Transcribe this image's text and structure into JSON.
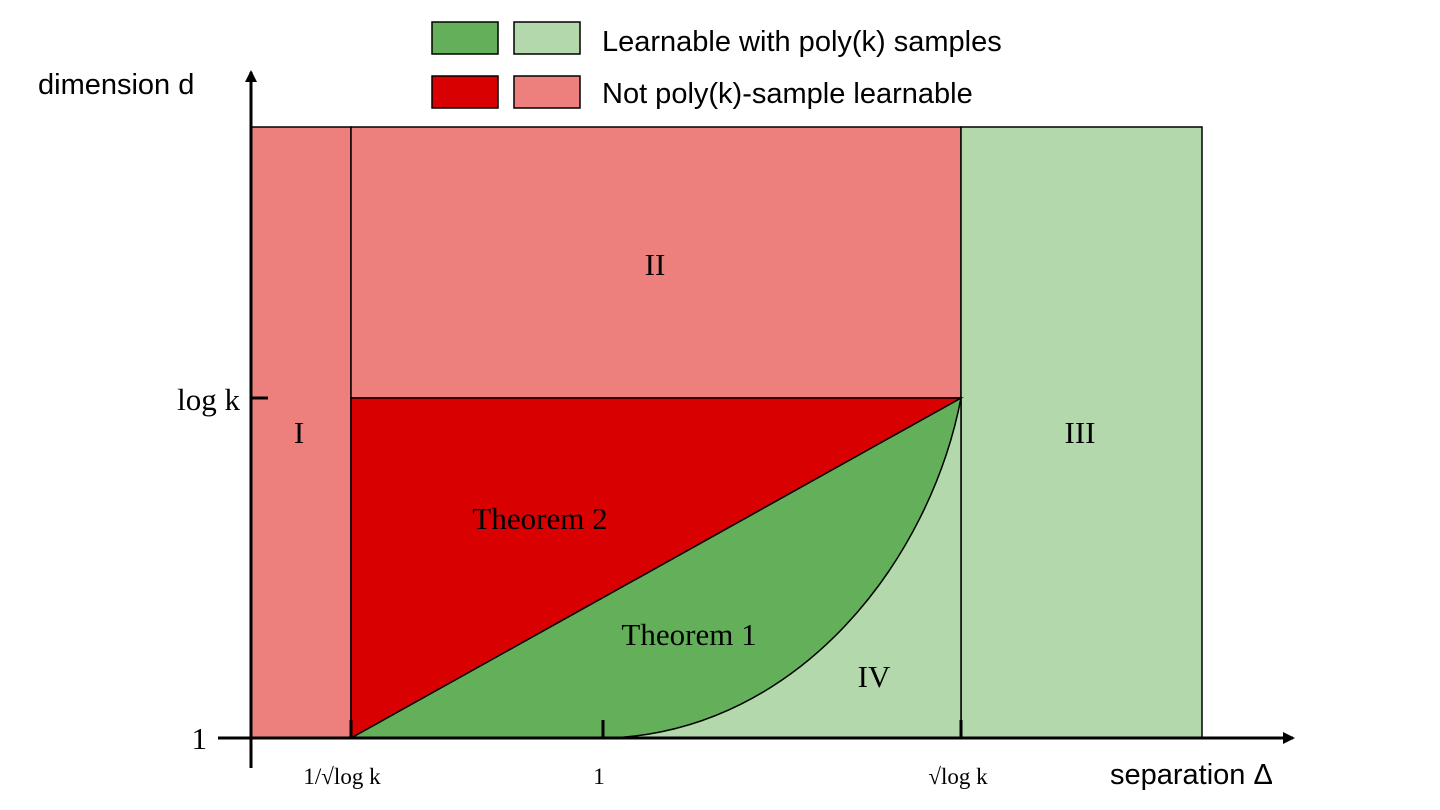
{
  "legend": {
    "learnable_label": "Learnable with poly(k) samples",
    "not_learnable_label": "Not poly(k)-sample learnable",
    "colors": {
      "learnable_dark": "#64b05a",
      "learnable_light": "#b3d8ac",
      "not_learnable_dark": "#d80000",
      "not_learnable_light": "#ed7f7d"
    }
  },
  "axes": {
    "y_label": "dimension d",
    "x_label": "separation Δ",
    "y_ticks": [
      "log k",
      "1"
    ],
    "x_ticks": [
      "1/√log k",
      "1",
      "√log k"
    ]
  },
  "regions": {
    "region_1": "I",
    "region_2": "II",
    "region_3": "III",
    "region_4": "IV",
    "theorem_1": "Theorem 1",
    "theorem_2": "Theorem 2"
  }
}
